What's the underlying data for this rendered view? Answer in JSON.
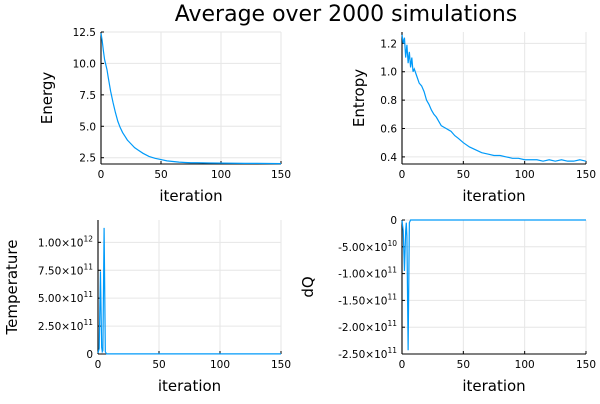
{
  "figure_title": "Average over 2000 simulations",
  "series_color": "#009AF9",
  "chart_data": [
    {
      "type": "line",
      "xlabel": "iteration",
      "ylabel": "Energy",
      "xlim": [
        0,
        150
      ],
      "ylim": [
        2.0,
        12.5
      ],
      "xticks": [
        0,
        50,
        100,
        150
      ],
      "xtick_labels": [
        "0",
        "50",
        "100",
        "150"
      ],
      "yticks": [
        2.5,
        5.0,
        7.5,
        10.0,
        12.5
      ],
      "ytick_labels": [
        "2.5",
        "5.0",
        "7.5",
        "10.0",
        "12.5"
      ],
      "grid": true,
      "x": [
        0,
        1,
        2,
        3,
        4,
        5,
        6,
        8,
        10,
        12,
        14,
        16,
        18,
        20,
        22,
        25,
        28,
        31,
        35,
        40,
        45,
        50,
        55,
        60,
        65,
        70,
        75,
        80,
        90,
        100,
        110,
        120,
        130,
        140,
        150
      ],
      "y": [
        12.4,
        11.8,
        11.0,
        10.3,
        9.9,
        9.5,
        8.9,
        7.8,
        6.9,
        6.1,
        5.4,
        4.9,
        4.5,
        4.2,
        3.9,
        3.6,
        3.3,
        3.1,
        2.85,
        2.6,
        2.45,
        2.35,
        2.25,
        2.2,
        2.15,
        2.12,
        2.1,
        2.1,
        2.08,
        2.07,
        2.06,
        2.05,
        2.05,
        2.04,
        2.03
      ]
    },
    {
      "type": "line",
      "xlabel": "iteration",
      "ylabel": "Entropy",
      "xlim": [
        0,
        150
      ],
      "ylim": [
        0.35,
        1.28
      ],
      "xticks": [
        0,
        50,
        100,
        150
      ],
      "xtick_labels": [
        "0",
        "50",
        "100",
        "150"
      ],
      "yticks": [
        0.4,
        0.6,
        0.8,
        1.0,
        1.2
      ],
      "ytick_labels": [
        "0.4",
        "0.6",
        "0.8",
        "1.0",
        "1.2"
      ],
      "grid": true,
      "x": [
        0,
        1,
        2,
        3,
        4,
        5,
        6,
        7,
        8,
        9,
        10,
        12,
        14,
        16,
        18,
        20,
        22,
        24,
        26,
        28,
        30,
        32,
        34,
        36,
        38,
        40,
        43,
        46,
        50,
        55,
        60,
        65,
        70,
        75,
        80,
        85,
        90,
        95,
        100,
        105,
        110,
        115,
        120,
        125,
        130,
        135,
        140,
        145,
        150
      ],
      "y": [
        1.26,
        1.2,
        1.24,
        1.1,
        1.19,
        1.06,
        1.14,
        1.03,
        1.1,
        1.0,
        1.02,
        0.97,
        0.92,
        0.9,
        0.86,
        0.8,
        0.77,
        0.73,
        0.7,
        0.68,
        0.65,
        0.62,
        0.61,
        0.6,
        0.59,
        0.58,
        0.55,
        0.53,
        0.5,
        0.47,
        0.45,
        0.43,
        0.42,
        0.41,
        0.41,
        0.4,
        0.39,
        0.39,
        0.38,
        0.38,
        0.38,
        0.37,
        0.38,
        0.37,
        0.38,
        0.37,
        0.37,
        0.38,
        0.37
      ]
    },
    {
      "type": "line",
      "xlabel": "iteration",
      "ylabel": "Temperature",
      "xlim": [
        0,
        150
      ],
      "ylim": [
        0,
        1200000000000.0
      ],
      "xticks": [
        0,
        50,
        100,
        150
      ],
      "xtick_labels": [
        "0",
        "50",
        "100",
        "150"
      ],
      "yticks": [
        0,
        250000000000.0,
        500000000000.0,
        750000000000.0,
        1000000000000.0
      ],
      "ytick_labels": [
        {
          "mantissa": "0",
          "exp": ""
        },
        {
          "mantissa": "2.50×10",
          "exp": "11"
        },
        {
          "mantissa": "5.00×10",
          "exp": "11"
        },
        {
          "mantissa": "7.50×10",
          "exp": "11"
        },
        {
          "mantissa": "1.00×10",
          "exp": "12"
        }
      ],
      "grid": true,
      "x": [
        0,
        1,
        2,
        3,
        3.5,
        4,
        5,
        6,
        7,
        10,
        20,
        50,
        100,
        150
      ],
      "y": [
        10000000000.0,
        50000000000.0,
        740000000000.0,
        60000000000.0,
        20000000000.0,
        30000000000.0,
        1130000000000.0,
        20000000000.0,
        1000000000.0,
        1000000000.0,
        1000000000.0,
        1000000000.0,
        1000000000.0,
        1000000000.0
      ]
    },
    {
      "type": "line",
      "xlabel": "iteration",
      "ylabel": "dQ",
      "xlim": [
        0,
        150
      ],
      "ylim": [
        -250000000000.0,
        0
      ],
      "xticks": [
        0,
        50,
        100,
        150
      ],
      "xtick_labels": [
        "0",
        "50",
        "100",
        "150"
      ],
      "yticks": [
        0,
        -50000000000.0,
        -100000000000.0,
        -150000000000.0,
        -200000000000.0,
        -250000000000.0
      ],
      "ytick_labels": [
        {
          "mantissa": "0",
          "exp": ""
        },
        {
          "mantissa": "-5.00×10",
          "exp": "10"
        },
        {
          "mantissa": "-1.00×10",
          "exp": "11"
        },
        {
          "mantissa": "-1.50×10",
          "exp": "11"
        },
        {
          "mantissa": "-2.00×10",
          "exp": "11"
        },
        {
          "mantissa": "-2.50×10",
          "exp": "11"
        }
      ],
      "grid": true,
      "x": [
        0,
        1,
        2,
        3,
        3.5,
        4,
        5,
        6,
        7,
        10,
        50,
        100,
        150
      ],
      "y": [
        -1000000000.0,
        -20000000000.0,
        -95000000000.0,
        -20000000000.0,
        -5000000000.0,
        -30000000000.0,
        -243000000000.0,
        -5000000000.0,
        0,
        0,
        0,
        0,
        0
      ]
    }
  ]
}
